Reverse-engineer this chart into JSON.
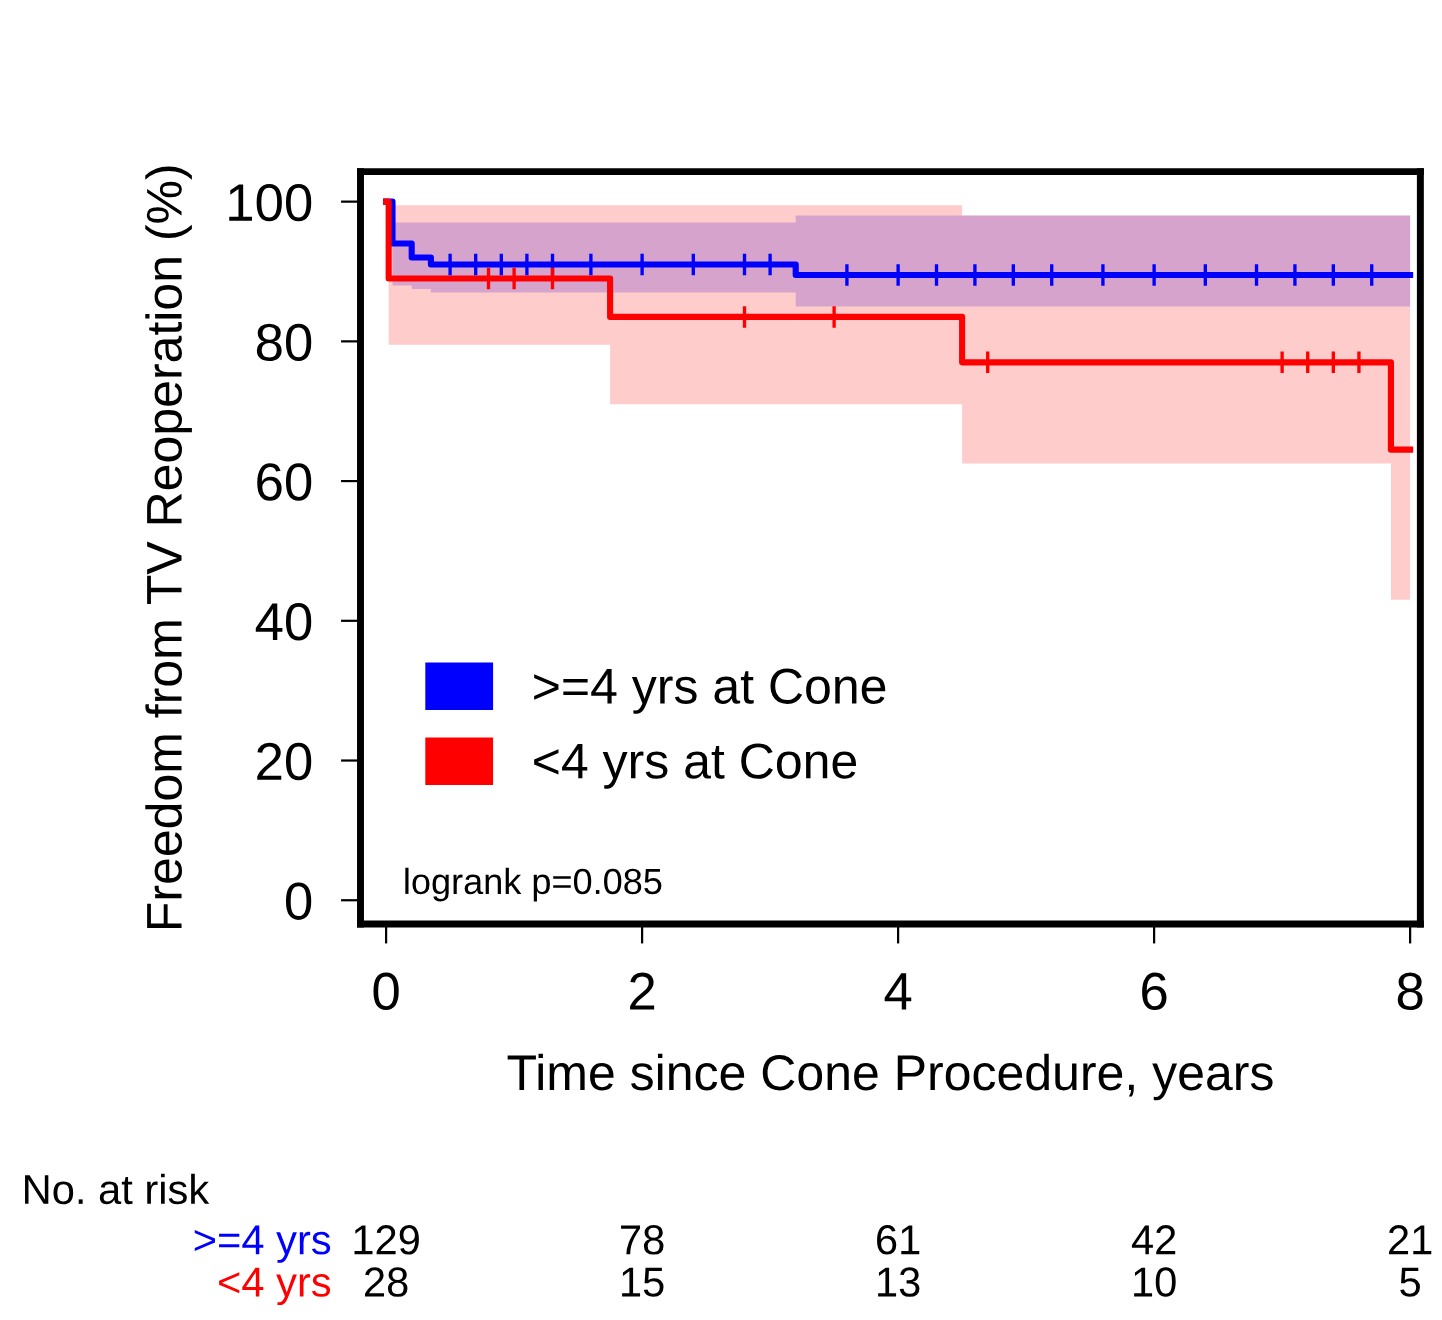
{
  "chart_data": {
    "type": "step",
    "xlabel": "Time since Cone Procedure, years",
    "ylabel": "Freedom from TV Reoperation (%)",
    "xlim": [
      -0.2,
      8.08
    ],
    "ylim": [
      -3.4,
      104.3
    ],
    "xticks": [
      0,
      2,
      4,
      6,
      8
    ],
    "yticks": [
      0,
      20,
      40,
      60,
      80,
      100
    ],
    "grid": false,
    "legend": "bottom left",
    "series": [
      {
        "name": ">=4 yrs at Cone",
        "color": "#0000ff",
        "x": [
          0,
          0.05,
          0.2,
          0.35,
          3.2,
          8
        ],
        "values": [
          100,
          94,
          92,
          91,
          89.5,
          89.5
        ],
        "lower": [
          100,
          88,
          87.5,
          87,
          85,
          85
        ],
        "upper": [
          100,
          97,
          97,
          97,
          98,
          98
        ]
      },
      {
        "name": "<4 yrs at Cone",
        "color": "#ff0000",
        "x": [
          0,
          0.02,
          1.75,
          4.5,
          7.85,
          8
        ],
        "values": [
          100,
          89,
          83.5,
          77,
          64.5,
          64.5
        ],
        "lower": [
          100,
          79.5,
          71,
          62.5,
          43,
          43
        ],
        "upper": [
          100,
          99.5,
          99.5,
          98,
          98,
          98
        ]
      },
      {
        "color": "#0000ff",
        "type": "scatter",
        "marker": "cross",
        "x": [
          0.5,
          0.7,
          0.9,
          1.1,
          1.3,
          1.6,
          2.0,
          2.4,
          2.8,
          3.0,
          3.6,
          4.0,
          4.3,
          4.6,
          4.9,
          5.2,
          5.6,
          6.0,
          6.4,
          6.8,
          7.1,
          7.4,
          7.7
        ],
        "values": [
          91,
          91,
          91,
          91,
          91,
          91,
          91,
          91,
          91,
          91,
          89.5,
          89.5,
          89.5,
          89.5,
          89.5,
          89.5,
          89.5,
          89.5,
          89.5,
          89.5,
          89.5,
          89.5,
          89.5
        ]
      },
      {
        "color": "#ff0000",
        "type": "scatter",
        "marker": "cross",
        "x": [
          0.8,
          1.0,
          1.3,
          2.8,
          3.5,
          4.7,
          7.0,
          7.2,
          7.4,
          7.6
        ],
        "values": [
          89,
          89,
          89,
          83.5,
          83.5,
          77,
          77,
          77,
          77,
          77
        ]
      }
    ],
    "annotations": [
      "logrank p=0.085",
      "No. at risk",
      ">=4 yrs",
      "129",
      "78",
      "61",
      "42",
      "21",
      "<4 yrs",
      "28",
      "15",
      "13",
      "10",
      "5"
    ]
  }
}
